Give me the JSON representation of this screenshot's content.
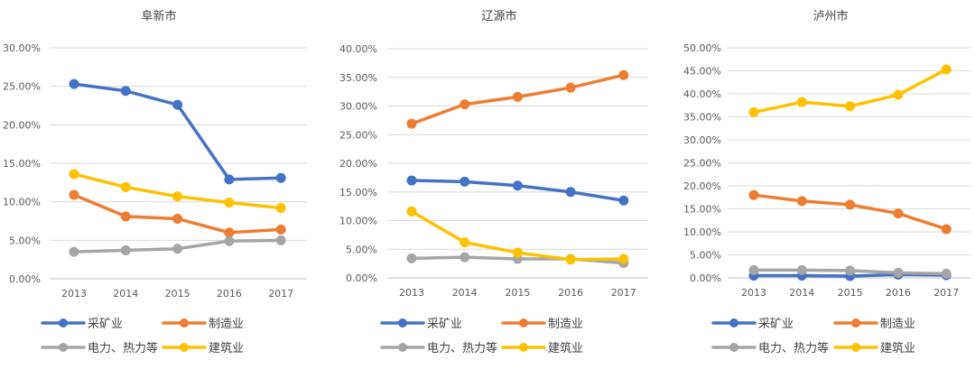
{
  "chart_data": [
    {
      "type": "line",
      "title": "阜新市",
      "categories": [
        "2013",
        "2014",
        "2015",
        "2016",
        "2017"
      ],
      "y_ticks": [
        "0.00%",
        "5.00%",
        "10.00%",
        "15.00%",
        "20.00%",
        "25.00%",
        "30.00%"
      ],
      "ylim": [
        0,
        30
      ],
      "grid": true,
      "legend": "bottom",
      "series": [
        {
          "name": "采矿业",
          "color": "#4472C4",
          "values": [
            25.3,
            24.4,
            22.6,
            12.9,
            13.1
          ]
        },
        {
          "name": "制造业",
          "color": "#ED7D31",
          "values": [
            10.9,
            8.1,
            7.8,
            6.0,
            6.4
          ]
        },
        {
          "name": "电力、热力等",
          "color": "#A5A5A5",
          "values": [
            3.5,
            3.7,
            3.9,
            4.9,
            5.0
          ]
        },
        {
          "name": "建筑业",
          "color": "#FFC000",
          "values": [
            13.6,
            11.9,
            10.7,
            9.9,
            9.2
          ]
        }
      ]
    },
    {
      "type": "line",
      "title": "辽源市",
      "categories": [
        "2013",
        "2014",
        "2015",
        "2016",
        "2017"
      ],
      "y_ticks": [
        "0.00%",
        "5.00%",
        "10.00%",
        "15.00%",
        "20.00%",
        "25.00%",
        "30.00%",
        "35.00%",
        "40.00%"
      ],
      "ylim": [
        0,
        40
      ],
      "grid": true,
      "legend": "bottom",
      "series": [
        {
          "name": "采矿业",
          "color": "#4472C4",
          "values": [
            17.0,
            16.8,
            16.1,
            15.0,
            13.5
          ]
        },
        {
          "name": "制造业",
          "color": "#ED7D31",
          "values": [
            26.9,
            30.3,
            31.6,
            33.2,
            35.4
          ]
        },
        {
          "name": "电力、热力等",
          "color": "#A5A5A5",
          "values": [
            3.4,
            3.6,
            3.3,
            3.3,
            2.6
          ]
        },
        {
          "name": "建筑业",
          "color": "#FFC000",
          "values": [
            11.6,
            6.2,
            4.4,
            3.2,
            3.3
          ]
        }
      ]
    },
    {
      "type": "line",
      "title": "泸州市",
      "categories": [
        "2013",
        "2014",
        "2015",
        "2016",
        "2017"
      ],
      "y_ticks": [
        "0.00%",
        "5.00%",
        "10.00%",
        "15.00%",
        "20.00%",
        "25.00%",
        "30.00%",
        "35.00%",
        "40.00%",
        "45.00%",
        "50.00%"
      ],
      "ylim": [
        0,
        50
      ],
      "grid": true,
      "legend": "bottom",
      "series": [
        {
          "name": "采矿业",
          "color": "#4472C4",
          "values": [
            0.5,
            0.5,
            0.4,
            0.7,
            0.6
          ]
        },
        {
          "name": "制造业",
          "color": "#ED7D31",
          "values": [
            18.0,
            16.7,
            15.9,
            14.0,
            10.6
          ]
        },
        {
          "name": "电力、热力等",
          "color": "#A5A5A5",
          "values": [
            1.7,
            1.7,
            1.6,
            1.1,
            0.9
          ]
        },
        {
          "name": "建筑业",
          "color": "#FFC000",
          "values": [
            36.0,
            38.2,
            37.3,
            39.8,
            45.3
          ]
        }
      ]
    }
  ]
}
